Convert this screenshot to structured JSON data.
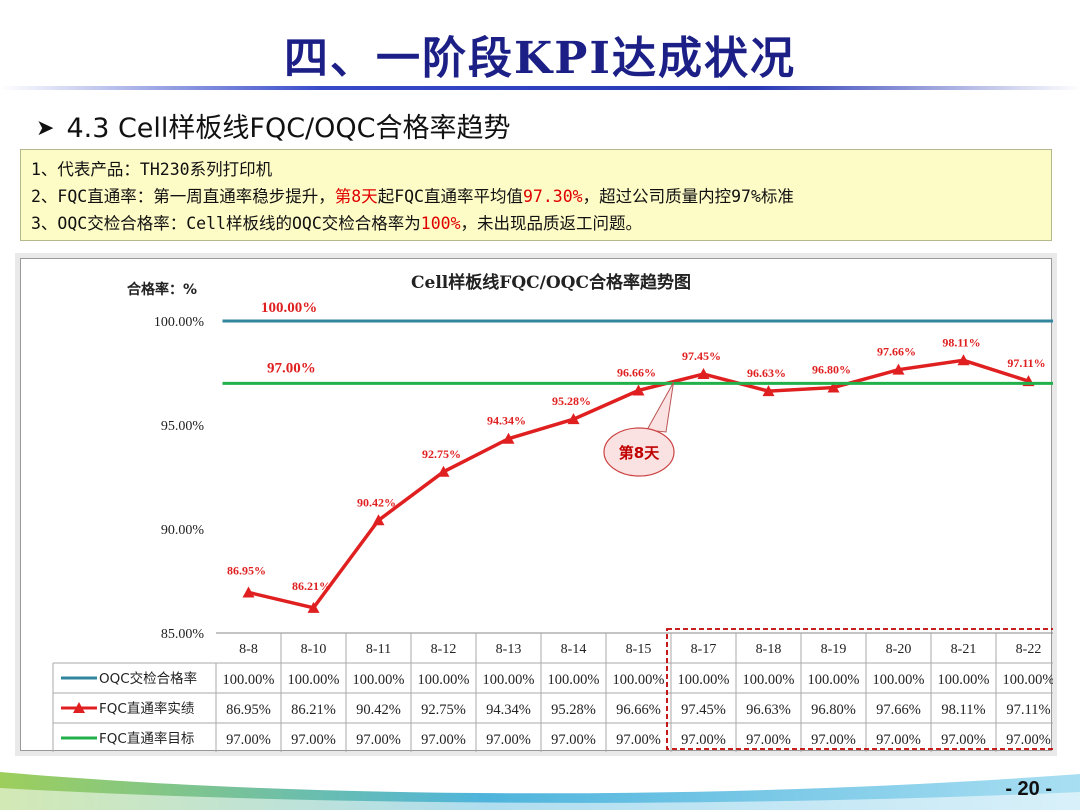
{
  "slide": {
    "title": "四、一阶段KPI达成状况",
    "subtitle": "4.3  Cell样板线FQC/OQC合格率趋势",
    "page_number": "- 20 -"
  },
  "summary": {
    "line1": "1、代表产品：TH230系列打印机",
    "line2_a": "2、FQC直通率：第一周直通率稳步提升，",
    "line2_hl1": "第8天",
    "line2_b": "起FQC直通率平均值",
    "line2_hl2": "97.30%",
    "line2_c": "，超过公司质量内控97%标准",
    "line3_a": "3、OQC交检合格率：Cell样板线的OQC交检合格率为",
    "line3_hl": "100%",
    "line3_b": "，未出现品质返工问题。"
  },
  "chart_data": {
    "type": "line",
    "title": "Cell样板线FQC/OQC合格率趋势图",
    "ylabel": "合格率：%",
    "ylim": [
      85,
      100
    ],
    "yticks": [
      "85.00%",
      "90.00%",
      "95.00%",
      "100.00%"
    ],
    "categories": [
      "8-8",
      "8-10",
      "8-11",
      "8-12",
      "8-13",
      "8-14",
      "8-15",
      "8-17",
      "8-18",
      "8-19",
      "8-20",
      "8-21",
      "8-22"
    ],
    "series": [
      {
        "name": "OQC交检合格率",
        "color": "#31859c",
        "marker": "none",
        "values": [
          100,
          100,
          100,
          100,
          100,
          100,
          100,
          100,
          100,
          100,
          100,
          100,
          100
        ],
        "table": [
          "100.00%",
          "100.00%",
          "100.00%",
          "100.00%",
          "100.00%",
          "100.00%",
          "100.00%",
          "100.00%",
          "100.00%",
          "100.00%",
          "100.00%",
          "100.00%",
          "100.00%"
        ]
      },
      {
        "name": "FQC直通率实绩",
        "color": "#e02020",
        "marker": "triangle",
        "values": [
          86.95,
          86.21,
          90.42,
          92.75,
          94.34,
          95.28,
          96.66,
          97.45,
          96.63,
          96.8,
          97.66,
          98.11,
          97.11
        ],
        "table": [
          "86.95%",
          "86.21%",
          "90.42%",
          "92.75%",
          "94.34%",
          "95.28%",
          "96.66%",
          "97.45%",
          "96.63%",
          "96.80%",
          "97.66%",
          "98.11%",
          "97.11%"
        ]
      },
      {
        "name": "FQC直通率目标",
        "color": "#22b04b",
        "marker": "none",
        "values": [
          97,
          97,
          97,
          97,
          97,
          97,
          97,
          97,
          97,
          97,
          97,
          97,
          97
        ],
        "table": [
          "97.00%",
          "97.00%",
          "97.00%",
          "97.00%",
          "97.00%",
          "97.00%",
          "97.00%",
          "97.00%",
          "97.00%",
          "97.00%",
          "97.00%",
          "97.00%",
          "97.00%"
        ]
      }
    ],
    "line_labels": {
      "oqc": "100.00%",
      "target": "97.00%"
    },
    "callout": {
      "text": "第8天",
      "index": 7
    },
    "highlight_range": [
      7,
      12
    ],
    "legend": "table"
  }
}
